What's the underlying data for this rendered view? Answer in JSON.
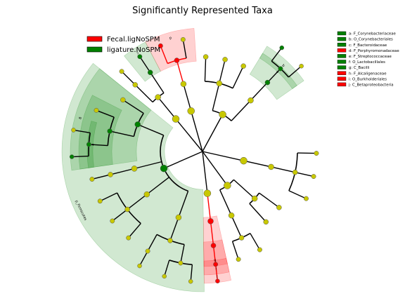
{
  "chart_data": {
    "type": "cladogram",
    "title": "Significantly Represented Taxa",
    "groups": [
      {
        "name": "Fecal.ligNoSPM",
        "color": "#ff0000"
      },
      {
        "name": "ligature.NoSPM",
        "color": "#008000"
      }
    ],
    "highlight_colors": {
      "red": "#ff0000",
      "green": "#008000",
      "node": "#c8c800"
    },
    "clade_legend": [
      {
        "key": "a",
        "label": "a: F_Corynebacteriaceae",
        "group": "ligature.NoSPM"
      },
      {
        "key": "b",
        "label": "b: O_Corynebacteriales",
        "group": "ligature.NoSPM"
      },
      {
        "key": "c",
        "label": "c: F_Bacteroidaceae",
        "group": "ligature.NoSPM"
      },
      {
        "key": "d",
        "label": "d: F_Porphyromonadaceae",
        "group": "Fecal.ligNoSPM"
      },
      {
        "key": "e",
        "label": "e: F_Streptococcaceae",
        "group": "ligature.NoSPM"
      },
      {
        "key": "f",
        "label": "f: O_Lactobacillales",
        "group": "ligature.NoSPM"
      },
      {
        "key": "g",
        "label": "g: C_Bacilli",
        "group": "ligature.NoSPM"
      },
      {
        "key": "h",
        "label": "h: F_Alcaligenaceae",
        "group": "Fecal.ligNoSPM"
      },
      {
        "key": "i",
        "label": "i: O_Burkholderiales",
        "group": "Fecal.ligNoSPM"
      },
      {
        "key": "j",
        "label": "j: C_Betaproteobacteria",
        "group": "Fecal.ligNoSPM"
      }
    ],
    "phylum_labels": [
      "p_Firmicutes"
    ]
  }
}
